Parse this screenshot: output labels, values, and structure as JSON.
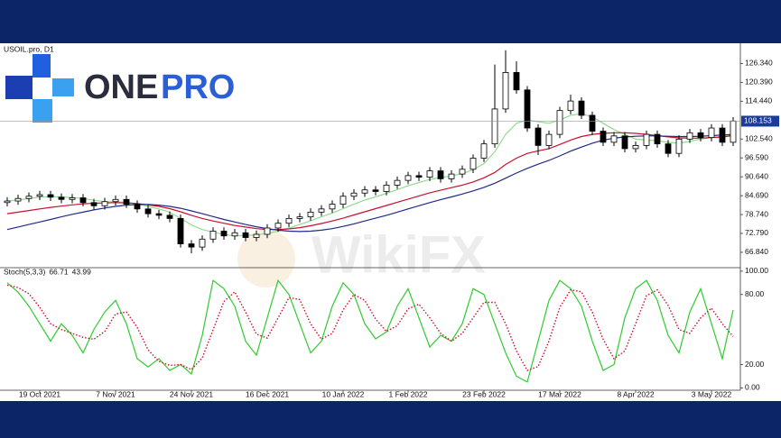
{
  "logo": {
    "part1": "ONE",
    "part2": "PRO"
  },
  "watermark": "WikiFX",
  "chart_data": [
    {
      "type": "candlestick",
      "title": "USOIL.pro, D1",
      "categories": [
        null,
        null,
        null,
        "19 Oct 2021",
        null,
        null,
        null,
        null,
        null,
        null,
        "7 Nov 2021",
        null,
        null,
        null,
        null,
        null,
        null,
        "24 Nov 2021",
        null,
        null,
        null,
        null,
        null,
        null,
        "16 Dec 2021",
        null,
        null,
        null,
        null,
        null,
        null,
        "10 Jan 2022",
        null,
        null,
        null,
        null,
        null,
        "1 Feb 2022",
        null,
        null,
        null,
        null,
        null,
        null,
        "23 Feb 2022",
        null,
        null,
        null,
        null,
        null,
        null,
        "17 Mar 2022",
        null,
        null,
        null,
        null,
        null,
        null,
        "8 Apr 2022",
        null,
        null,
        null,
        null,
        null,
        null,
        "3 May 2022",
        null,
        null
      ],
      "open": [
        82.5,
        83.0,
        83.8,
        84.5,
        85.0,
        84.2,
        83.5,
        84.0,
        82.5,
        81.5,
        82.8,
        83.5,
        82.0,
        80.5,
        79.0,
        78.5,
        77.5,
        69.5,
        68.5,
        71.0,
        73.5,
        72.0,
        73.0,
        71.5,
        72.5,
        74.5,
        76.0,
        77.5,
        78.0,
        79.5,
        80.5,
        82.0,
        84.5,
        85.5,
        86.5,
        86.0,
        88.0,
        89.5,
        91.0,
        90.5,
        92.5,
        90.0,
        91.5,
        93.0,
        96.5,
        101.0,
        112.0,
        123.5,
        118.0,
        106.0,
        100.5,
        104.0,
        111.5,
        114.5,
        110.0,
        105.0,
        101.5,
        103.5,
        99.5,
        100.5,
        104.0,
        101.0,
        98.0,
        102.5,
        104.5,
        103.0,
        106.0,
        101.5
      ],
      "high": [
        84.2,
        85.0,
        85.7,
        86.2,
        86.2,
        85.4,
        85.2,
        85.2,
        83.7,
        84.0,
        84.7,
        84.7,
        83.2,
        81.7,
        80.2,
        79.7,
        78.7,
        70.7,
        72.2,
        74.7,
        74.7,
        74.2,
        74.2,
        73.7,
        75.7,
        77.2,
        78.7,
        79.2,
        80.7,
        81.7,
        83.2,
        85.7,
        86.7,
        87.7,
        87.7,
        89.2,
        90.7,
        92.2,
        92.2,
        93.7,
        93.7,
        92.7,
        94.2,
        97.7,
        102.2,
        126.0,
        130.5,
        127.0,
        119.2,
        107.2,
        105.2,
        112.7,
        116.5,
        115.7,
        111.2,
        106.2,
        104.7,
        104.7,
        101.7,
        105.2,
        105.2,
        102.2,
        103.7,
        105.7,
        105.7,
        107.2,
        107.2,
        109.4
      ],
      "low": [
        81.3,
        81.8,
        82.6,
        83.3,
        83.0,
        82.3,
        82.3,
        81.3,
        80.3,
        80.3,
        81.6,
        80.8,
        79.3,
        77.8,
        77.3,
        76.3,
        68.3,
        66.5,
        67.3,
        69.8,
        70.8,
        70.8,
        70.3,
        70.3,
        71.3,
        73.3,
        74.8,
        76.3,
        76.8,
        78.3,
        79.3,
        80.8,
        83.3,
        84.3,
        84.8,
        84.8,
        86.8,
        88.3,
        89.3,
        89.3,
        88.8,
        88.8,
        90.3,
        91.8,
        95.3,
        99.8,
        110.8,
        116.8,
        104.8,
        97.5,
        99.3,
        102.8,
        110.3,
        108.8,
        103.8,
        100.3,
        100.3,
        98.3,
        98.3,
        99.3,
        99.8,
        96.8,
        96.8,
        101.3,
        101.8,
        101.8,
        100.3,
        100.3
      ],
      "close": [
        83.0,
        83.8,
        84.5,
        85.0,
        84.2,
        83.5,
        84.0,
        82.5,
        81.5,
        82.8,
        83.5,
        82.0,
        80.5,
        79.0,
        78.5,
        77.5,
        69.5,
        68.5,
        71.0,
        73.5,
        72.0,
        73.0,
        71.5,
        72.5,
        74.5,
        76.0,
        77.5,
        78.0,
        79.5,
        80.5,
        82.0,
        84.5,
        85.5,
        86.5,
        86.0,
        88.0,
        89.5,
        91.0,
        90.5,
        92.5,
        90.0,
        91.5,
        93.0,
        96.5,
        101.0,
        112.0,
        123.5,
        118.0,
        106.0,
        100.5,
        104.0,
        111.5,
        114.5,
        110.0,
        105.0,
        101.5,
        103.5,
        99.5,
        100.5,
        104.0,
        101.0,
        98.0,
        102.5,
        104.5,
        103.0,
        106.0,
        101.5,
        108.2
      ],
      "up_color": "#ffffff",
      "down_color": "#000000",
      "outline_color": "#000000",
      "lines": [
        {
          "color": "#8fdc8f",
          "values": [
            83,
            83.3,
            83.8,
            84.2,
            84.4,
            84.3,
            84.1,
            83.8,
            83.2,
            82.8,
            82.7,
            82.6,
            82.1,
            81.3,
            80.5,
            79.5,
            77.5,
            75.5,
            74,
            73.2,
            72.5,
            72,
            72.2,
            72.3,
            72.8,
            73.5,
            74.5,
            75.6,
            76.8,
            78,
            79.2,
            80.6,
            82,
            83.3,
            84.3,
            85.4,
            86.6,
            87.8,
            88.8,
            89.8,
            90.4,
            90.9,
            91.6,
            92.8,
            94.8,
            98.5,
            104,
            107.5,
            108.5,
            108,
            107.5,
            108.5,
            110,
            110.5,
            109.5,
            107.5,
            105.5,
            104,
            102.5,
            102.2,
            102,
            101.5,
            101.2,
            101.8,
            102.5,
            103,
            103,
            104
          ]
        },
        {
          "color": "#c8102e",
          "values": [
            79,
            79.5,
            80,
            80.5,
            81,
            81.4,
            81.8,
            82.1,
            82.3,
            82.4,
            82.5,
            82.4,
            82.2,
            81.8,
            81.3,
            80.6,
            79.6,
            78.5,
            77.5,
            76.7,
            76,
            75.3,
            74.8,
            74.3,
            74,
            74,
            74.2,
            74.6,
            75.2,
            75.9,
            76.7,
            77.6,
            78.6,
            79.6,
            80.6,
            81.6,
            82.6,
            83.6,
            84.6,
            85.6,
            86.4,
            87.2,
            88,
            89,
            90.3,
            92,
            94.5,
            96.5,
            98,
            98.8,
            99.5,
            100.8,
            102.2,
            103.3,
            104,
            104.3,
            104.5,
            104.5,
            104.3,
            104,
            103.6,
            103.2,
            102.9,
            102.8,
            102.8,
            103,
            103.2,
            103.6
          ]
        },
        {
          "color": "#1f2a8a",
          "values": [
            74,
            74.8,
            75.6,
            76.4,
            77.2,
            78,
            78.8,
            79.5,
            80.2,
            80.8,
            81.3,
            81.7,
            81.9,
            81.9,
            81.7,
            81.3,
            80.7,
            79.9,
            79,
            78.1,
            77.2,
            76.4,
            75.6,
            74.9,
            74.3,
            73.8,
            73.5,
            73.4,
            73.5,
            73.8,
            74.3,
            75,
            75.8,
            76.7,
            77.6,
            78.5,
            79.5,
            80.5,
            81.5,
            82.5,
            83.4,
            84.3,
            85.2,
            86.2,
            87.3,
            88.6,
            90.2,
            91.8,
            93.3,
            94.6,
            95.8,
            97.2,
            98.7,
            100,
            101.2,
            102.2,
            102.8,
            103.2,
            103.4,
            103.5,
            103.5,
            103.4,
            103.3,
            103.3,
            103.4,
            103.6,
            103.8,
            104
          ]
        }
      ],
      "ylim": [
        62,
        132.7
      ],
      "yticks": [
        {
          "value": 126.34,
          "label": "126.340"
        },
        {
          "value": 120.39,
          "label": "120.390"
        },
        {
          "value": 114.44,
          "label": "114.440"
        },
        {
          "value": 102.54,
          "label": "102.540"
        },
        {
          "value": 96.59,
          "label": "96.590"
        },
        {
          "value": 90.64,
          "label": "90.640"
        },
        {
          "value": 84.69,
          "label": "84.690"
        },
        {
          "value": 78.74,
          "label": "78.740"
        },
        {
          "value": 72.79,
          "label": "72.790"
        },
        {
          "value": 66.84,
          "label": "66.840"
        }
      ],
      "last_price": {
        "value": 108.153,
        "label": "108.153"
      },
      "last_price_color": "#1a3a9c"
    },
    {
      "type": "line",
      "title": "Stoch(5,3,3)",
      "series": [
        {
          "color": "#2ecc2e",
          "dash": false,
          "values": [
            90,
            82,
            70,
            55,
            40,
            55,
            45,
            30,
            50,
            65,
            75,
            55,
            25,
            18,
            25,
            15,
            20,
            12,
            45,
            92,
            85,
            70,
            40,
            28,
            60,
            92,
            80,
            55,
            30,
            40,
            70,
            90,
            80,
            55,
            42,
            48,
            70,
            85,
            60,
            35,
            45,
            40,
            55,
            85,
            80,
            55,
            30,
            10,
            5,
            40,
            75,
            92,
            85,
            70,
            40,
            15,
            20,
            60,
            85,
            92,
            75,
            45,
            30,
            65,
            85,
            55,
            25,
            66.71
          ]
        },
        {
          "color": "#c8102e",
          "dash": true,
          "values": [
            88,
            86,
            80.7,
            69,
            55,
            50,
            46.7,
            43.3,
            41.7,
            48.3,
            63.3,
            65,
            51.7,
            32.7,
            22.7,
            19.3,
            20,
            15.7,
            25.7,
            49.7,
            74,
            82.3,
            65,
            46,
            42.7,
            60,
            77.3,
            75.7,
            55,
            41.7,
            46.7,
            66.7,
            80,
            75,
            59,
            48.3,
            53.3,
            67.7,
            71.7,
            60,
            46.7,
            40,
            46.7,
            60,
            73.3,
            73.3,
            55,
            31.7,
            15,
            18.3,
            40,
            69,
            84,
            82.3,
            65,
            41.7,
            25,
            31.7,
            55,
            79,
            84,
            70.7,
            50,
            46.7,
            60,
            68.3,
            55,
            43.99
          ]
        }
      ],
      "ylim": [
        -2,
        103
      ],
      "yticks": [
        {
          "value": 100,
          "label": "100.00"
        },
        {
          "value": 80,
          "label": "80.00"
        },
        {
          "value": 20,
          "label": "20.00"
        },
        {
          "value": 0,
          "label": "0.00"
        }
      ]
    }
  ]
}
